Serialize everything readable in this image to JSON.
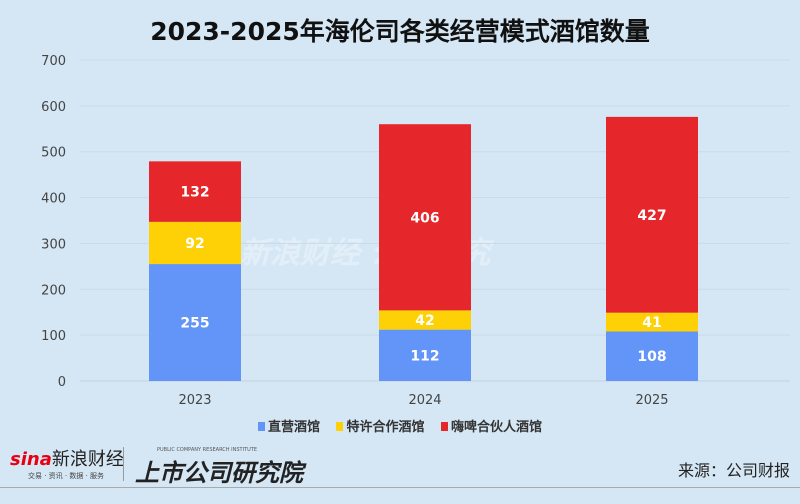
{
  "chart_data": {
    "type": "stacked-bar",
    "title": "2023-2025年海伦司各类经营模式酒馆数量",
    "categories": [
      "2023",
      "2024",
      "2025"
    ],
    "series": [
      {
        "name": "直营酒馆",
        "color": "#6394f7",
        "values": [
          255,
          112,
          108
        ]
      },
      {
        "name": "特许合作酒馆",
        "color": "#fdd105",
        "values": [
          92,
          42,
          41
        ]
      },
      {
        "name": "嗨啤合伙人酒馆",
        "color": "#e5262a",
        "values": [
          132,
          406,
          427
        ]
      }
    ],
    "ylim": [
      0,
      700
    ],
    "yticks": [
      0,
      100,
      200,
      300,
      400,
      500,
      600,
      700
    ],
    "grid": true,
    "legend": "bottom"
  },
  "footer": {
    "sina_logo": "sina新浪财经",
    "sina_tagline": "交易 · 资讯 · 数据 · 服务",
    "institute_logo": "上市公司研究院",
    "institute_tagline": "PUBLIC COMPANY RESEARCH INSTITUTE",
    "source": "来源：公司财报"
  },
  "watermark": "新浪财经 公司研究"
}
